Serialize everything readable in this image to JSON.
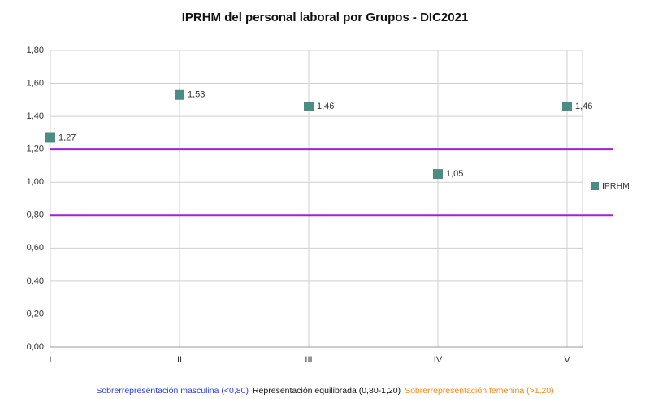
{
  "chart_data": {
    "type": "scatter",
    "title": "IPRHM del personal laboral por Grupos - DIC2021",
    "categories": [
      "I",
      "II",
      "III",
      "IV",
      "V"
    ],
    "series": [
      {
        "name": "IPRHM",
        "color": "#4d8c82",
        "values": [
          1.27,
          1.53,
          1.46,
          1.05,
          1.46
        ],
        "value_labels": [
          "1,27",
          "1,53",
          "1,46",
          "1,05",
          "1,46"
        ]
      }
    ],
    "ylim": [
      0,
      1.8
    ],
    "yticks": [
      {
        "value": 0,
        "label": "0,00"
      },
      {
        "value": 0.2,
        "label": "0,20"
      },
      {
        "value": 0.4,
        "label": "0,40"
      },
      {
        "value": 0.6,
        "label": "0,60"
      },
      {
        "value": 0.8,
        "label": "0,80"
      },
      {
        "value": 1.0,
        "label": "1,00"
      },
      {
        "value": 1.2,
        "label": "1,20"
      },
      {
        "value": 1.4,
        "label": "1,40"
      },
      {
        "value": 1.6,
        "label": "1,60"
      },
      {
        "value": 1.8,
        "label": "1,80"
      }
    ],
    "grid": true,
    "reference_lines": [
      {
        "value": 1.2,
        "color": "#a21fdc"
      },
      {
        "value": 0.8,
        "color": "#a21fdc"
      }
    ],
    "legend": "right",
    "annotations": [
      {
        "text": "Sobrerrepresentación masculina (<0,80)",
        "color": "#2b3fd6"
      },
      {
        "text": "Representación equilibrada (0,80-1,20)",
        "color": "#111111"
      },
      {
        "text": "Sobrerrepresentación femenina  (>1,20)",
        "color": "#f08a1c"
      }
    ]
  }
}
